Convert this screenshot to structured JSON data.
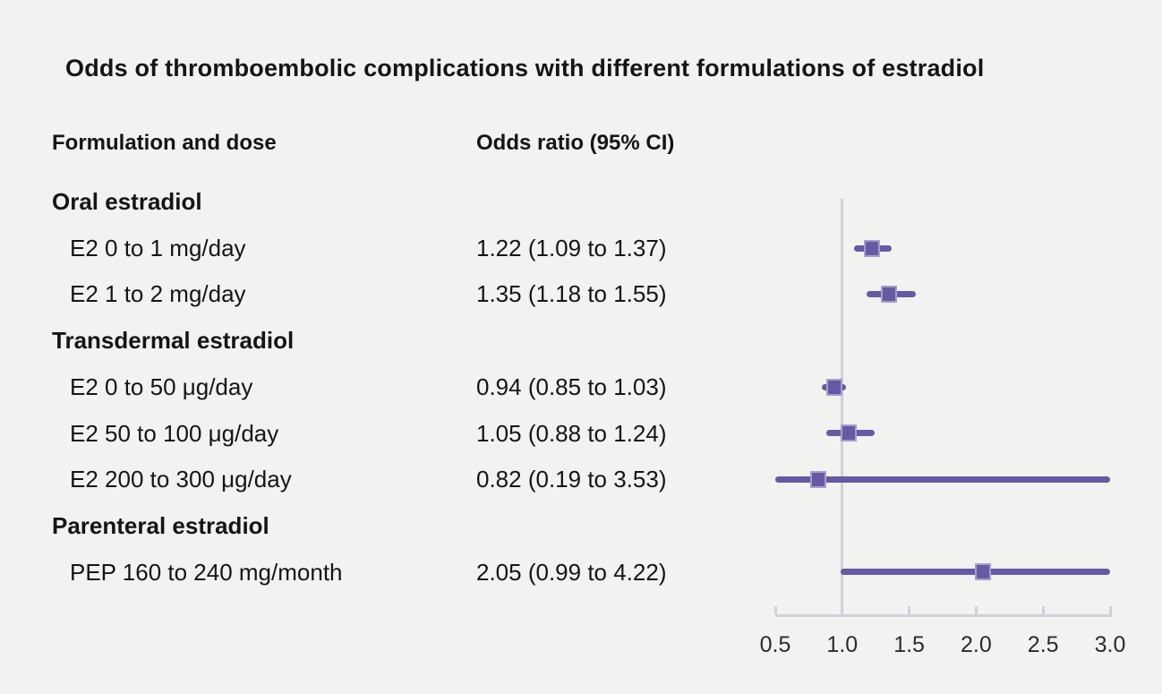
{
  "title": "Odds of thromboembolic complications with different formulations of estradiol",
  "columns": {
    "formulation": "Formulation and dose",
    "odds_ratio": "Odds ratio (95% CI)"
  },
  "colors": {
    "background": "#f2f2f1",
    "text": "#151515",
    "marker_purple": "#6859a4",
    "marker_border": "#a89cce",
    "axis_gray": "#ccd3db"
  },
  "chart_data": {
    "type": "forest-plot",
    "title": "Odds of thromboembolic complications with different formulations of estradiol",
    "xlabel": "",
    "ylabel": "",
    "xlim": [
      0.5,
      3.0
    ],
    "reference_line": 1.0,
    "tick_labels": [
      "0.5",
      "1.0",
      "1.5",
      "2.0",
      "2.5",
      "3.0"
    ],
    "tick_values": [
      0.5,
      1.0,
      1.5,
      2.0,
      2.5,
      3.0
    ],
    "grid": "off",
    "rows": [
      {
        "type": "group",
        "label": "Oral estradiol"
      },
      {
        "type": "item",
        "label": "E2 0 to 1 mg/day",
        "value_text": "1.22 (1.09 to 1.37)",
        "or": 1.22,
        "ci_low": 1.09,
        "ci_high": 1.37
      },
      {
        "type": "item",
        "label": "E2 1 to 2 mg/day",
        "value_text": "1.35 (1.18 to 1.55)",
        "or": 1.35,
        "ci_low": 1.18,
        "ci_high": 1.55
      },
      {
        "type": "group",
        "label": "Transdermal estradiol"
      },
      {
        "type": "item",
        "label": "E2 0 to 50 μg/day",
        "value_text": "0.94 (0.85 to 1.03)",
        "or": 0.94,
        "ci_low": 0.85,
        "ci_high": 1.03
      },
      {
        "type": "item",
        "label": "E2 50 to 100 μg/day",
        "value_text": "1.05 (0.88 to 1.24)",
        "or": 1.05,
        "ci_low": 0.88,
        "ci_high": 1.24
      },
      {
        "type": "item",
        "label": "E2 200 to 300 μg/day",
        "value_text": "0.82 (0.19 to 3.53)",
        "or": 0.82,
        "ci_low": 0.19,
        "ci_high": 3.53
      },
      {
        "type": "group",
        "label": "Parenteral estradiol"
      },
      {
        "type": "item",
        "label": "PEP 160 to 240 mg/month",
        "value_text": "2.05 (0.99 to 4.22)",
        "or": 2.05,
        "ci_low": 0.99,
        "ci_high": 4.22
      }
    ]
  }
}
